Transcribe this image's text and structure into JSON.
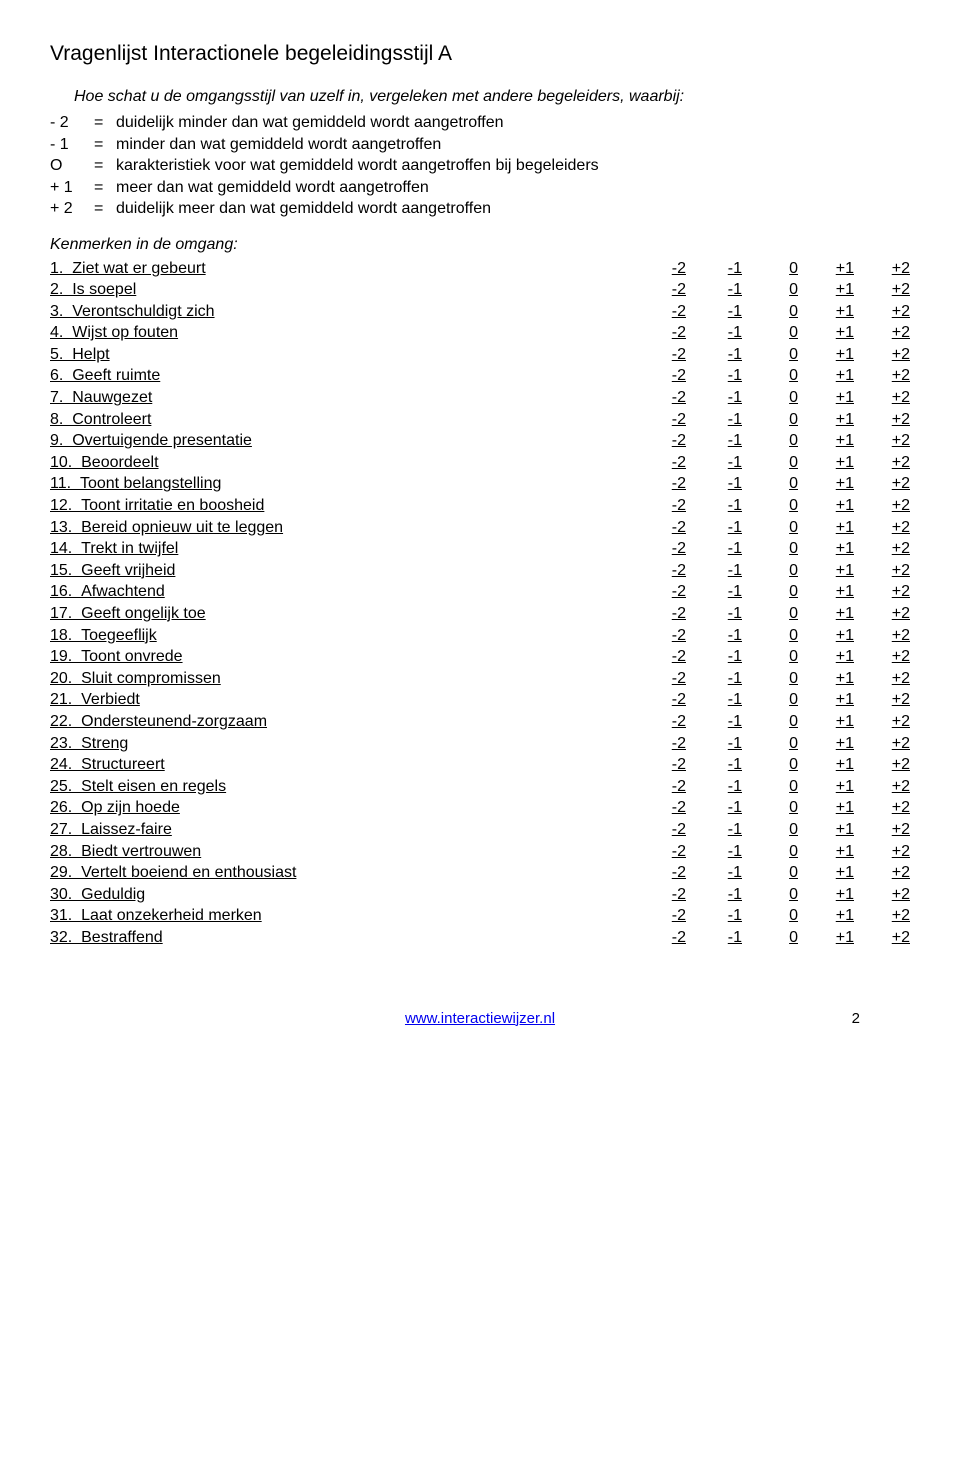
{
  "title": "Vragenlijst Interactionele begeleidingsstijl A",
  "intro": "Hoe schat u de omgangsstijl van uzelf in, vergeleken met andere begeleiders, waarbij:",
  "legend": [
    {
      "key": "- 2",
      "eq": "=",
      "text": "duidelijk minder dan wat gemiddeld wordt aangetroffen"
    },
    {
      "key": "- 1",
      "eq": "=",
      "text": "minder dan wat gemiddeld wordt aangetroffen"
    },
    {
      "key": "O",
      "eq": "=",
      "text": "karakteristiek voor wat gemiddeld wordt aangetroffen bij begeleiders"
    },
    {
      "key": "+ 1",
      "eq": "=",
      "text": "meer dan wat gemiddeld wordt aangetroffen"
    },
    {
      "key": "+ 2",
      "eq": "=",
      "text": "duidelijk meer dan wat gemiddeld wordt aangetroffen"
    }
  ],
  "section_heading": "Kenmerken in de omgang:",
  "scale_values": [
    "-2",
    "-1",
    "0",
    "+1",
    "+2"
  ],
  "items": [
    "Ziet wat er gebeurt",
    "Is soepel",
    "Verontschuldigt zich",
    "Wijst op fouten",
    "Helpt",
    "Geeft ruimte",
    "Nauwgezet",
    "Controleert",
    "Overtuigende presentatie",
    "Beoordeelt",
    "Toont belangstelling",
    "Toont irritatie en boosheid",
    "Bereid opnieuw uit te leggen",
    "Trekt in twijfel",
    "Geeft vrijheid",
    "Afwachtend",
    "Geeft ongelijk toe",
    "Toegeeflijk",
    "Toont onvrede",
    "Sluit compromissen",
    "Verbiedt",
    "Ondersteunend-zorgzaam",
    "Streng",
    "Structureert",
    "Stelt eisen en regels",
    "Op zijn hoede",
    "Laissez-faire",
    "Biedt vertrouwen",
    "Vertelt boeiend en enthousiast",
    "Geduldig",
    "Laat onzekerheid merken",
    "Bestraffend"
  ],
  "footer_link": "www.interactiewijzer.nl",
  "footer_page": "2"
}
